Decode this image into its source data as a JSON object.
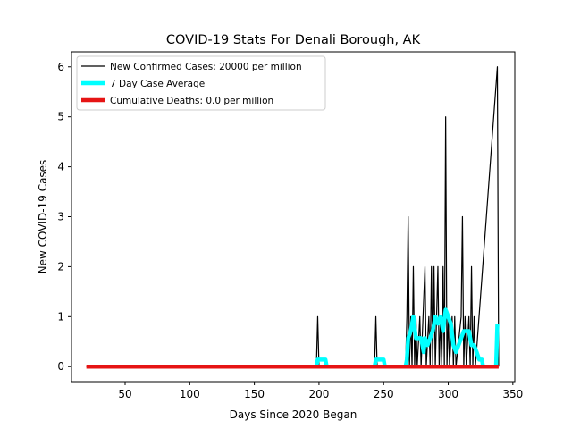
{
  "chart_data": {
    "type": "line",
    "title": "COVID-19 Stats For Denali Borough, AK",
    "xlabel": "Days Since 2020 Began",
    "ylabel": "New COVID-19 Cases",
    "xlim": [
      8.5,
      351.5
    ],
    "ylim": [
      -0.3,
      6.3
    ],
    "xticks": [
      50,
      100,
      150,
      200,
      250,
      300,
      350
    ],
    "yticks": [
      0,
      1,
      2,
      3,
      4,
      5,
      6
    ],
    "legend_position": "upper-left",
    "grid": false,
    "series": [
      {
        "name": "New Confirmed Cases: 20000 per million",
        "color": "#000000",
        "points": [
          [
            20,
            0
          ],
          [
            198,
            0
          ],
          [
            199,
            1
          ],
          [
            200,
            0
          ],
          [
            243,
            0
          ],
          [
            244,
            1
          ],
          [
            245,
            0
          ],
          [
            267,
            0
          ],
          [
            268,
            1
          ],
          [
            269,
            3
          ],
          [
            270,
            0
          ],
          [
            271,
            1
          ],
          [
            272,
            0
          ],
          [
            273,
            2
          ],
          [
            274,
            0
          ],
          [
            275,
            1
          ],
          [
            276,
            0
          ],
          [
            278,
            1
          ],
          [
            279,
            0
          ],
          [
            282,
            2
          ],
          [
            283,
            0
          ],
          [
            285,
            1
          ],
          [
            286,
            0
          ],
          [
            287,
            2
          ],
          [
            288,
            0
          ],
          [
            289,
            2
          ],
          [
            290,
            0
          ],
          [
            291,
            1
          ],
          [
            292,
            2
          ],
          [
            293,
            0
          ],
          [
            294,
            1
          ],
          [
            295,
            0
          ],
          [
            296,
            2
          ],
          [
            297,
            0
          ],
          [
            298,
            5
          ],
          [
            299,
            0
          ],
          [
            300,
            1
          ],
          [
            301,
            0
          ],
          [
            303,
            1
          ],
          [
            304,
            0
          ],
          [
            305,
            1
          ],
          [
            306,
            0
          ],
          [
            310,
            1
          ],
          [
            311,
            3
          ],
          [
            312,
            0
          ],
          [
            313,
            1
          ],
          [
            314,
            0
          ],
          [
            316,
            1
          ],
          [
            317,
            0
          ],
          [
            318,
            2
          ],
          [
            319,
            0
          ],
          [
            320,
            1
          ],
          [
            321,
            0
          ],
          [
            338,
            6
          ],
          [
            339,
            0
          ]
        ]
      },
      {
        "name": "7 Day Case Average",
        "color": "#00ffff",
        "points": [
          [
            198,
            0
          ],
          [
            199,
            0.14
          ],
          [
            205,
            0.14
          ],
          [
            206,
            0
          ],
          [
            243,
            0
          ],
          [
            244,
            0.14
          ],
          [
            250,
            0.14
          ],
          [
            251,
            0
          ],
          [
            267,
            0
          ],
          [
            268,
            0.14
          ],
          [
            269,
            0.57
          ],
          [
            271,
            0.71
          ],
          [
            273,
            1.0
          ],
          [
            275,
            0.57
          ],
          [
            277,
            0.57
          ],
          [
            279,
            0.57
          ],
          [
            281,
            0.29
          ],
          [
            282,
            0.57
          ],
          [
            284,
            0.43
          ],
          [
            286,
            0.57
          ],
          [
            288,
            0.71
          ],
          [
            290,
            1.0
          ],
          [
            292,
            0.86
          ],
          [
            294,
            1.0
          ],
          [
            296,
            0.71
          ],
          [
            298,
            1.14
          ],
          [
            300,
            1.0
          ],
          [
            302,
            0.86
          ],
          [
            304,
            0.43
          ],
          [
            306,
            0.29
          ],
          [
            308,
            0.43
          ],
          [
            310,
            0.57
          ],
          [
            312,
            0.71
          ],
          [
            314,
            0.71
          ],
          [
            316,
            0.71
          ],
          [
            318,
            0.43
          ],
          [
            320,
            0.43
          ],
          [
            322,
            0.29
          ],
          [
            324,
            0.14
          ],
          [
            326,
            0.14
          ],
          [
            327,
            0
          ],
          [
            337,
            0
          ],
          [
            338,
            0.86
          ]
        ]
      },
      {
        "name": "Cumulative Deaths: 0.0 per million",
        "color": "#e61414",
        "points": [
          [
            20,
            0
          ],
          [
            339,
            0
          ]
        ]
      }
    ]
  }
}
